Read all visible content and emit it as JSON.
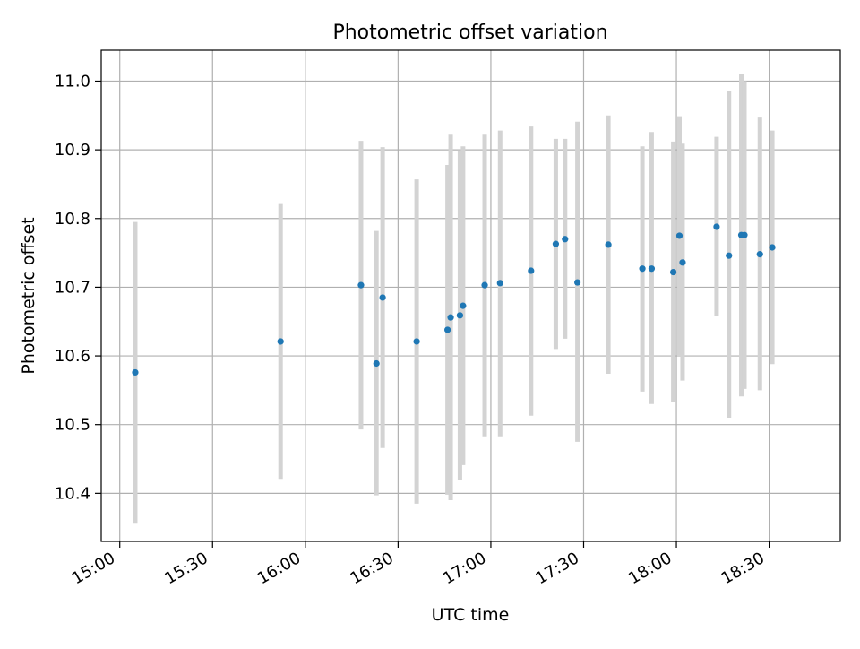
{
  "colors": {
    "point": "#1f77b4",
    "errorbar": "#d3d3d3",
    "grid": "#b0b0b0",
    "axis": "#000000",
    "background": "#ffffff"
  },
  "chart_data": {
    "type": "scatter",
    "title": "Photometric offset variation",
    "xlabel": "UTC time",
    "ylabel": "Photometric offset",
    "grid": true,
    "xlim": [
      "14:54",
      "18:53"
    ],
    "ylim": [
      10.33,
      11.045
    ],
    "x_ticks": [
      "15:00",
      "15:30",
      "16:00",
      "16:30",
      "17:00",
      "17:30",
      "18:00",
      "18:30"
    ],
    "y_ticks": [
      10.4,
      10.5,
      10.6,
      10.7,
      10.8,
      10.9,
      11.0
    ],
    "y_tick_labels": [
      "10.4",
      "10.5",
      "10.6",
      "10.7",
      "10.8",
      "10.9",
      "11.0"
    ],
    "points": [
      {
        "x": "15:05",
        "y": 10.576,
        "low": 10.357,
        "high": 10.795
      },
      {
        "x": "15:52",
        "y": 10.621,
        "low": 10.421,
        "high": 10.821
      },
      {
        "x": "16:18",
        "y": 10.703,
        "low": 10.493,
        "high": 10.913
      },
      {
        "x": "16:23",
        "y": 10.589,
        "low": 10.397,
        "high": 10.782
      },
      {
        "x": "16:25",
        "y": 10.685,
        "low": 10.466,
        "high": 10.904
      },
      {
        "x": "16:36",
        "y": 10.621,
        "low": 10.385,
        "high": 10.857
      },
      {
        "x": "16:46",
        "y": 10.638,
        "low": 10.398,
        "high": 10.878
      },
      {
        "x": "16:47",
        "y": 10.656,
        "low": 10.39,
        "high": 10.922
      },
      {
        "x": "16:50",
        "y": 10.659,
        "low": 10.42,
        "high": 10.898
      },
      {
        "x": "16:51",
        "y": 10.673,
        "low": 10.441,
        "high": 10.905
      },
      {
        "x": "16:58",
        "y": 10.703,
        "low": 10.483,
        "high": 10.922
      },
      {
        "x": "17:03",
        "y": 10.706,
        "low": 10.483,
        "high": 10.928
      },
      {
        "x": "17:13",
        "y": 10.724,
        "low": 10.513,
        "high": 10.934
      },
      {
        "x": "17:21",
        "y": 10.763,
        "low": 10.61,
        "high": 10.916
      },
      {
        "x": "17:24",
        "y": 10.77,
        "low": 10.625,
        "high": 10.916
      },
      {
        "x": "17:28",
        "y": 10.707,
        "low": 10.475,
        "high": 10.941
      },
      {
        "x": "17:38",
        "y": 10.762,
        "low": 10.574,
        "high": 10.95
      },
      {
        "x": "17:49",
        "y": 10.727,
        "low": 10.548,
        "high": 10.905
      },
      {
        "x": "17:52",
        "y": 10.727,
        "low": 10.53,
        "high": 10.926
      },
      {
        "x": "17:59",
        "y": 10.722,
        "low": 10.533,
        "high": 10.912
      },
      {
        "x": "18:01",
        "y": 10.775,
        "low": 10.6,
        "high": 10.949
      },
      {
        "x": "18:02",
        "y": 10.736,
        "low": 10.564,
        "high": 10.909
      },
      {
        "x": "18:13",
        "y": 10.788,
        "low": 10.658,
        "high": 10.919
      },
      {
        "x": "18:17",
        "y": 10.746,
        "low": 10.51,
        "high": 10.985
      },
      {
        "x": "18:21",
        "y": 10.776,
        "low": 10.541,
        "high": 11.01
      },
      {
        "x": "18:22",
        "y": 10.776,
        "low": 10.552,
        "high": 11.0
      },
      {
        "x": "18:27",
        "y": 10.748,
        "low": 10.55,
        "high": 10.947
      },
      {
        "x": "18:31",
        "y": 10.758,
        "low": 10.588,
        "high": 10.928
      }
    ]
  }
}
